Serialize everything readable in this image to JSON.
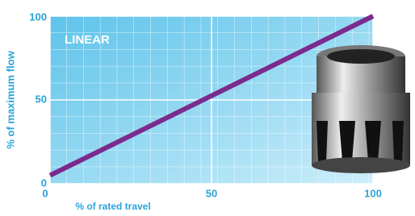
{
  "chart_data": {
    "type": "line",
    "annotation": "LINEAR",
    "x_label": "% of rated travel",
    "y_label": "% of maximum flow",
    "x": [
      0,
      100
    ],
    "series": [
      {
        "name": "LINEAR",
        "color": "#7b2a8e",
        "values": [
          5,
          100
        ]
      }
    ],
    "xlim": [
      0,
      100
    ],
    "xticks": [
      0,
      50,
      100
    ],
    "ylim": [
      0,
      100
    ],
    "yticks": [
      0,
      50,
      100
    ],
    "grid": true
  }
}
